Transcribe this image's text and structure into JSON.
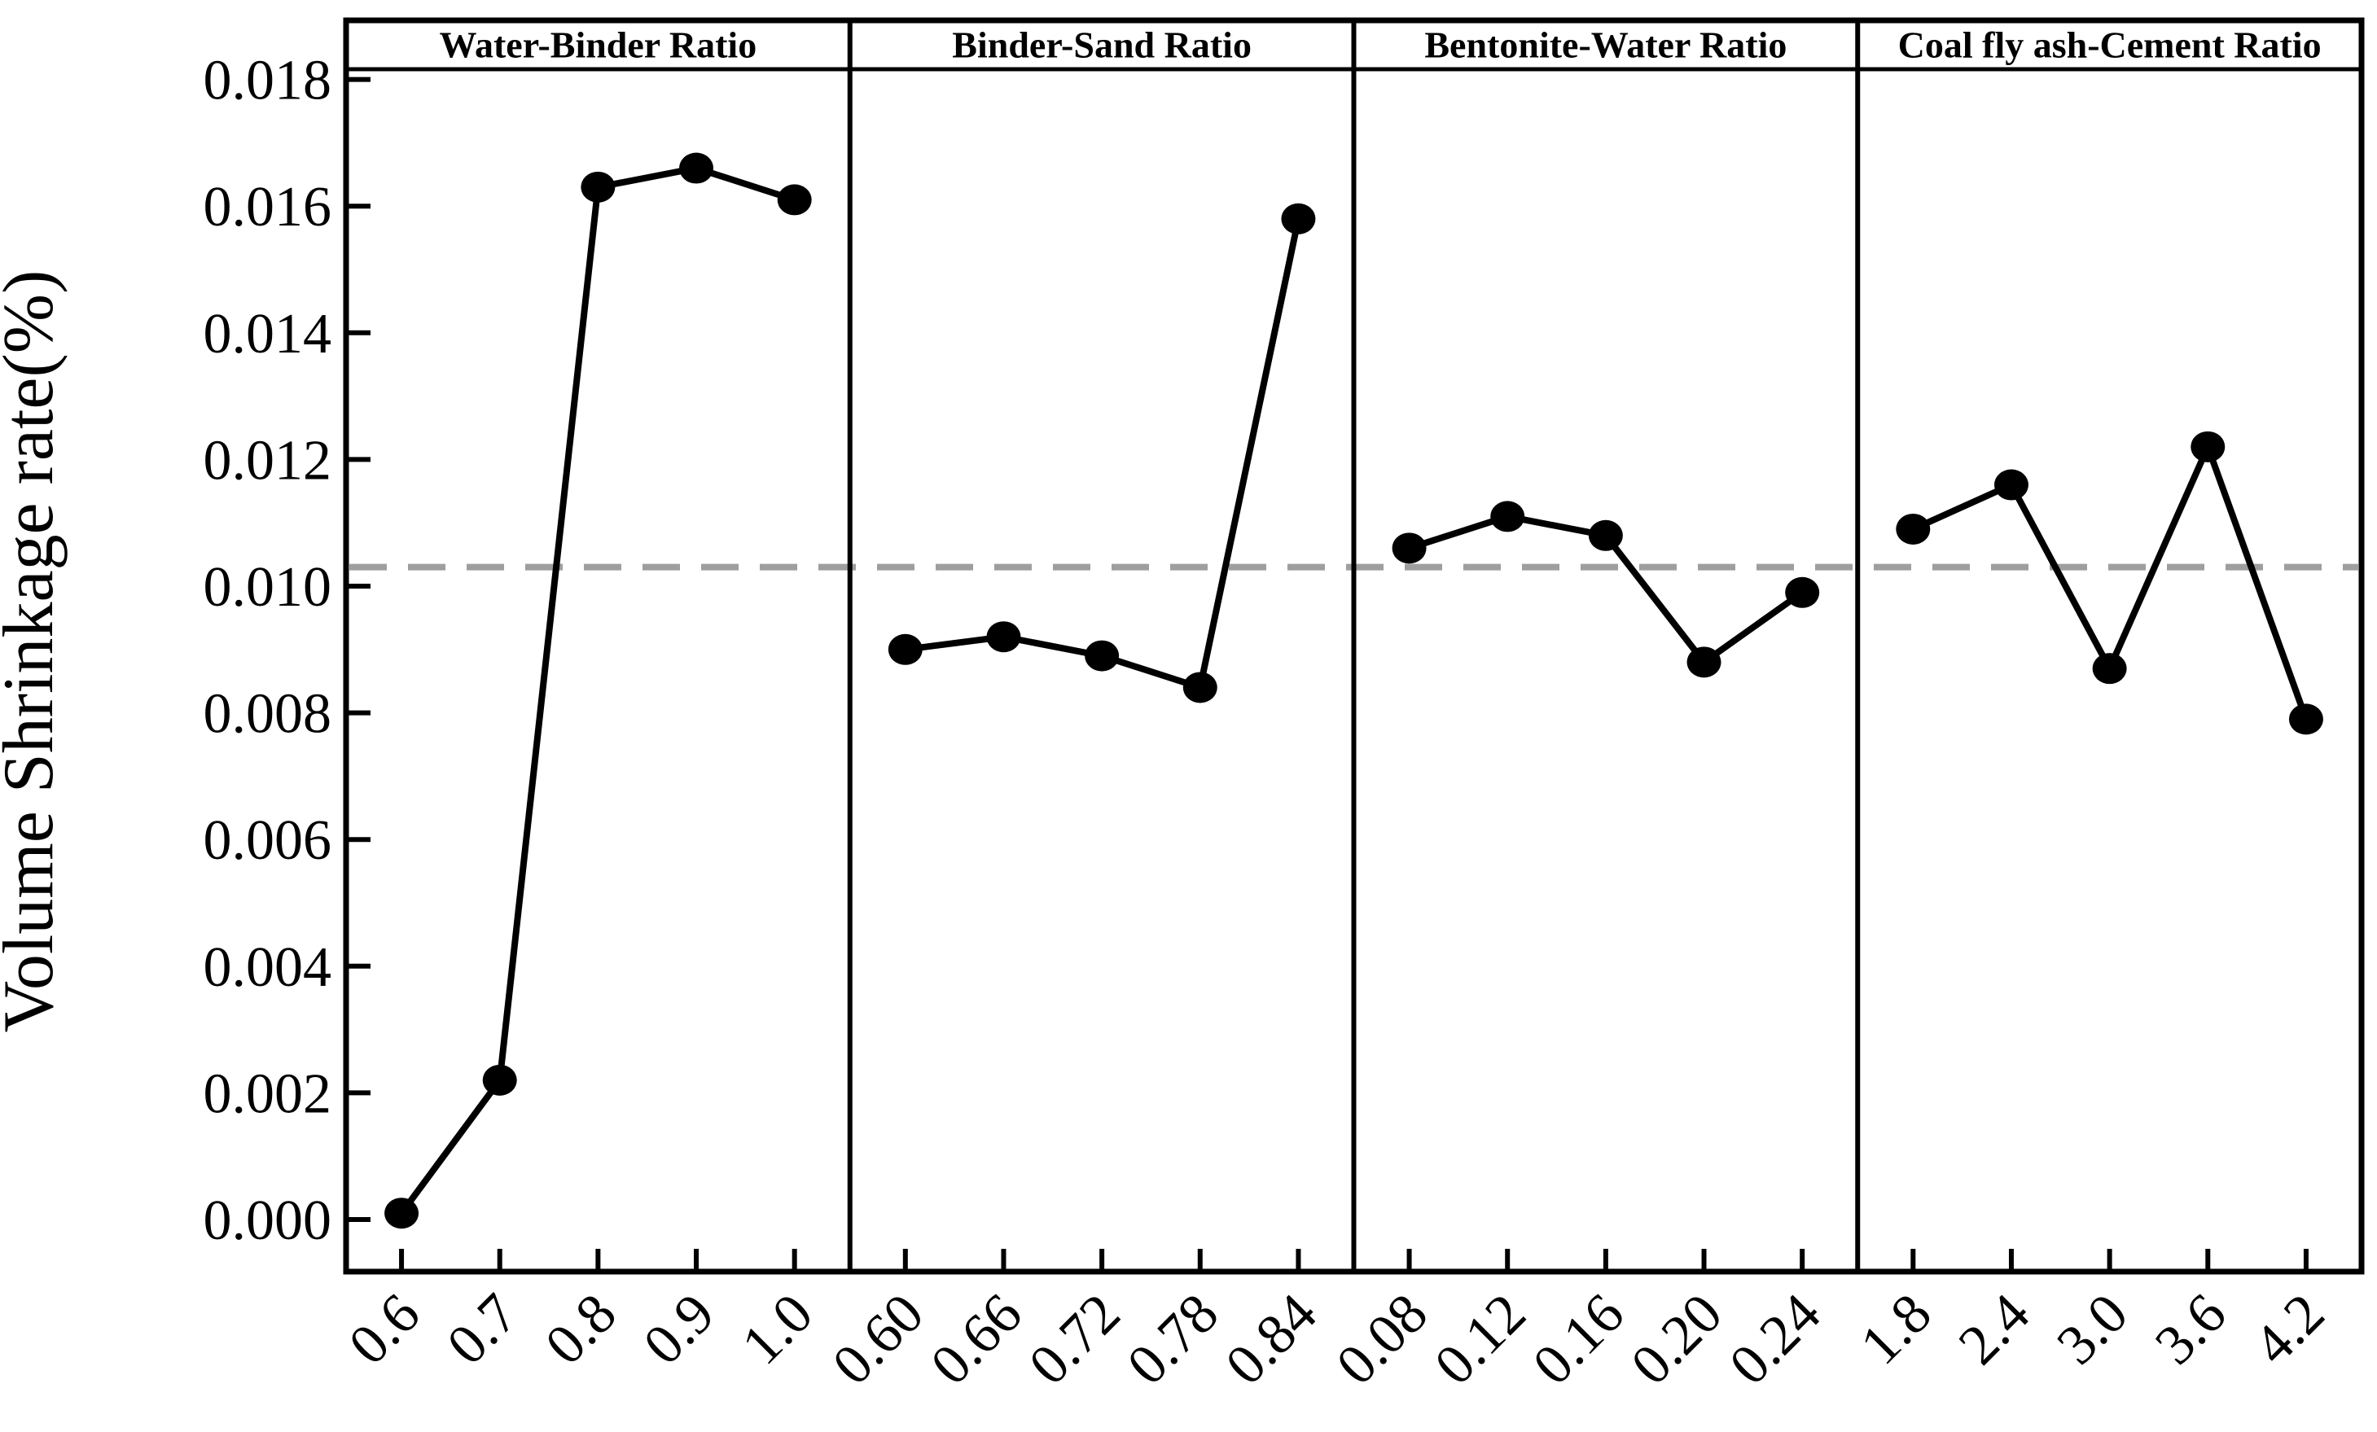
{
  "chart_data": {
    "type": "line",
    "title": "",
    "ylabel": "Volume Shrinkage rate(%)",
    "xlabel": "",
    "ylim": [
      -0.0008,
      0.0182
    ],
    "ytick_values": [
      0.0,
      0.002,
      0.004,
      0.006,
      0.008,
      0.01,
      0.012,
      0.014,
      0.016,
      0.018
    ],
    "ytick_format_decimals": 3,
    "grid": false,
    "legend": null,
    "line_color": "#000000",
    "marker": "filled-circle",
    "marker_color": "#000000",
    "reference_line": {
      "value": 0.0103,
      "style": "dashed",
      "color": "#9e9e9e"
    },
    "panels": [
      {
        "header": "Water-Binder Ratio",
        "categories": [
          "0.6",
          "0.7",
          "0.8",
          "0.9",
          "1.0"
        ],
        "values": [
          0.0001,
          0.0022,
          0.0163,
          0.0166,
          0.0161
        ]
      },
      {
        "header": "Binder-Sand Ratio",
        "categories": [
          "0.60",
          "0.66",
          "0.72",
          "0.78",
          "0.84"
        ],
        "values": [
          0.009,
          0.0092,
          0.0089,
          0.0084,
          0.0158
        ]
      },
      {
        "header": "Bentonite-Water Ratio",
        "categories": [
          "0.08",
          "0.12",
          "0.16",
          "0.20",
          "0.24"
        ],
        "values": [
          0.0106,
          0.0111,
          0.0108,
          0.0088,
          0.0099
        ]
      },
      {
        "header": "Coal fly ash-Cement Ratio",
        "categories": [
          "1.8",
          "2.4",
          "3.0",
          "3.6",
          "4.2"
        ],
        "values": [
          0.0109,
          0.0116,
          0.0087,
          0.0122,
          0.0079
        ]
      }
    ]
  }
}
